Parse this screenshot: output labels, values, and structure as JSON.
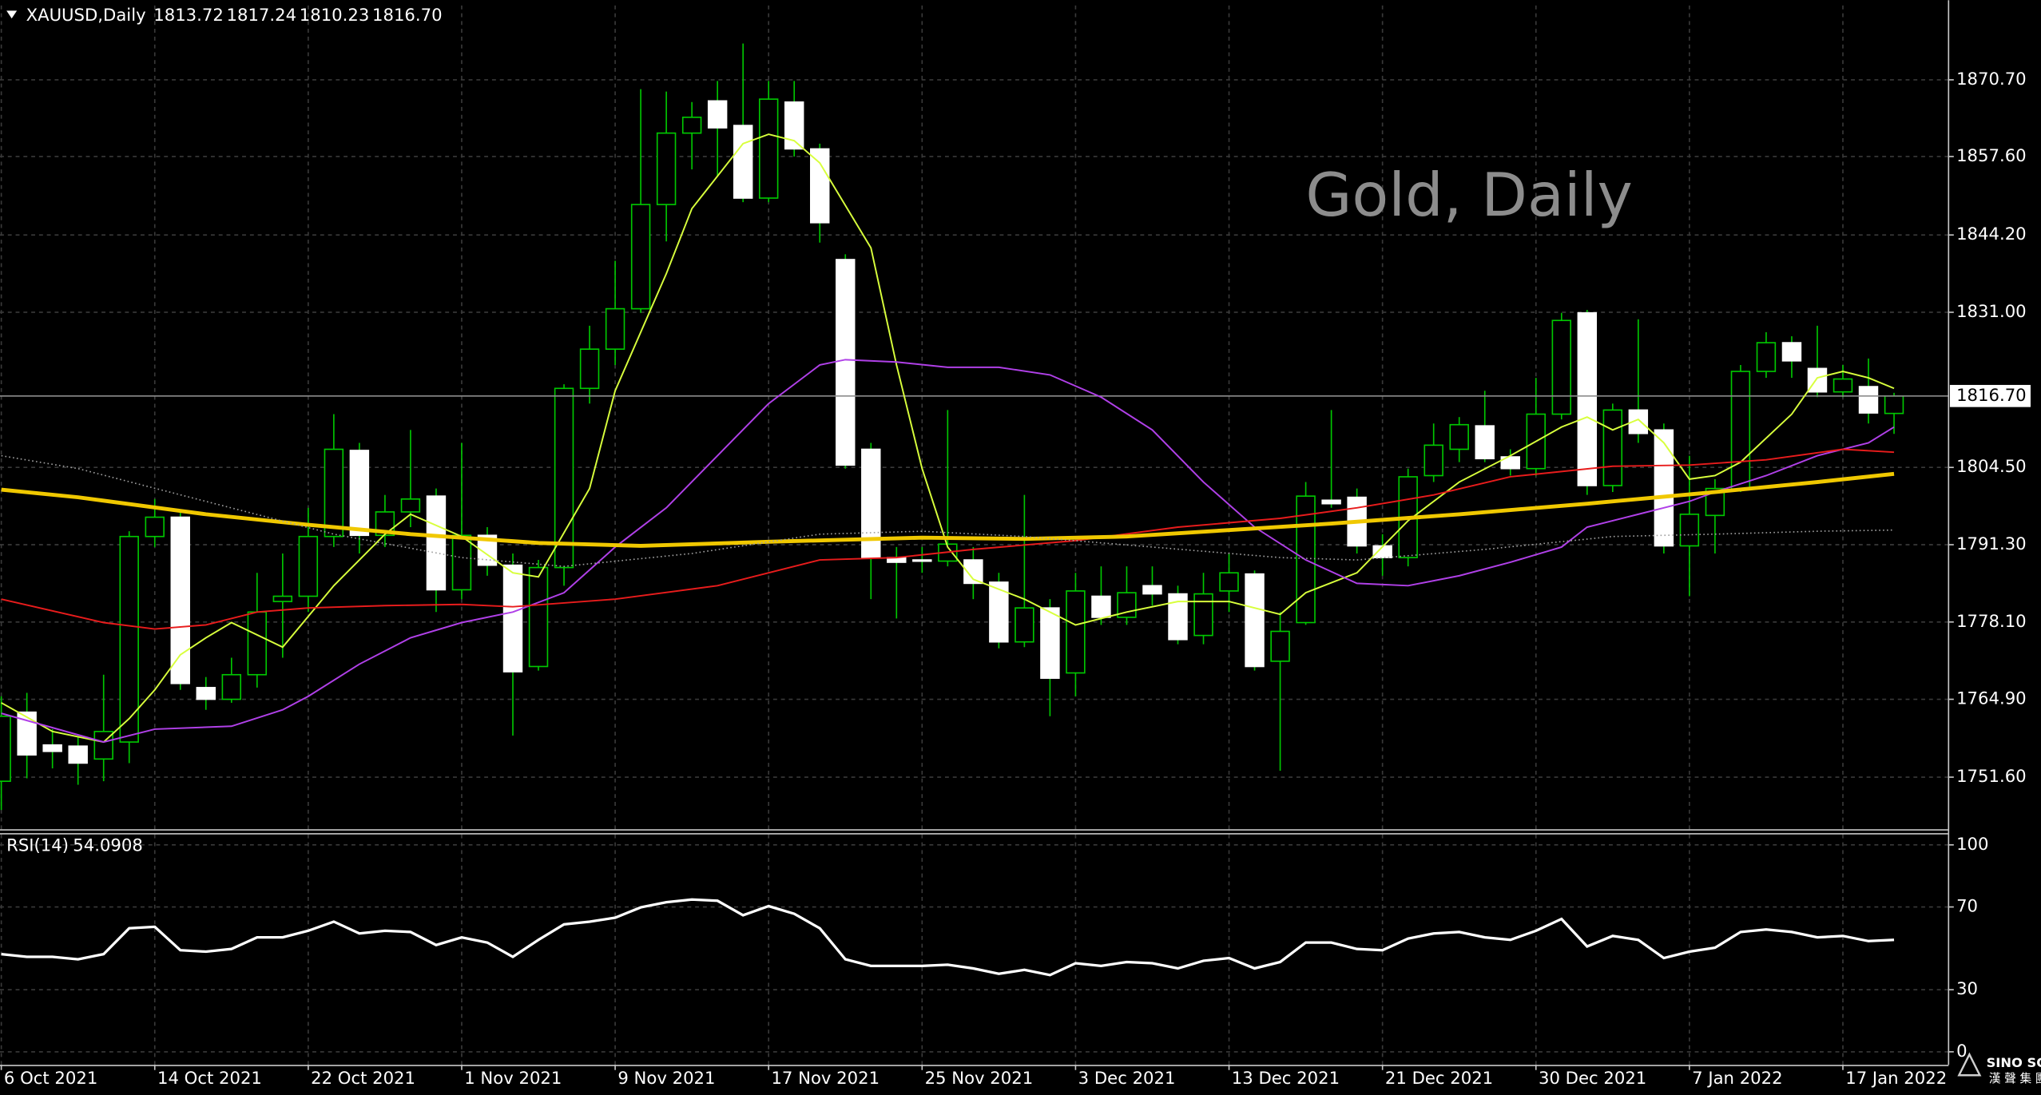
{
  "chart_data": [
    {
      "type": "candlestick",
      "title": "Gold, Daily",
      "symbol": "XAUUSD,Daily",
      "categories": [
        "6 Oct 2021",
        null,
        null,
        null,
        null,
        null,
        "14 Oct 2021",
        null,
        null,
        null,
        null,
        null,
        "22 Oct 2021",
        null,
        null,
        null,
        null,
        null,
        "1 Nov 2021",
        null,
        null,
        null,
        null,
        null,
        "9 Nov 2021",
        null,
        null,
        null,
        null,
        null,
        "17 Nov 2021",
        null,
        null,
        null,
        null,
        null,
        "25 Nov 2021",
        null,
        null,
        null,
        null,
        null,
        "3 Dec 2021",
        null,
        null,
        null,
        null,
        null,
        "13 Dec 2021",
        null,
        null,
        null,
        null,
        null,
        "21 Dec 2021",
        null,
        null,
        null,
        null,
        null,
        "30 Dec 2021",
        null,
        null,
        null,
        null,
        null,
        "7 Jan 2022",
        null,
        null,
        null,
        null,
        null,
        "17 Jan 2022",
        null,
        null
      ],
      "open": [
        1750.9,
        1762.7,
        1757.1,
        1756.9,
        1754.7,
        1757.6,
        1792.7,
        1796.0,
        1766.9,
        1764.9,
        1769.1,
        1781.6,
        1782.5,
        1792.7,
        1807.4,
        1792.9,
        1796.9,
        1799.6,
        1783.6,
        1792.9,
        1787.8,
        1770.5,
        1787.4,
        1818.0,
        1824.7,
        1831.6,
        1849.4,
        1861.6,
        1867.1,
        1862.9,
        1850.5,
        1866.9,
        1858.9,
        1840.0,
        1807.6,
        1789.1,
        1788.7,
        1788.5,
        1788.7,
        1784.9,
        1774.7,
        1780.5,
        1769.4,
        1782.5,
        1778.9,
        1784.3,
        1782.9,
        1775.8,
        1783.4,
        1786.3,
        1771.4,
        1778.0,
        1798.9,
        1799.4,
        1791.1,
        1789.1,
        1803.1,
        1807.6,
        1811.6,
        1806.3,
        1804.3,
        1813.6,
        1830.9,
        1801.4,
        1814.3,
        1810.9,
        1791.1,
        1796.3,
        1800.7,
        1820.9,
        1825.8,
        1821.4,
        1817.4,
        1818.3,
        1813.72
      ],
      "high": [
        1765.4,
        1766.0,
        1759.8,
        1758.5,
        1769.1,
        1793.6,
        1799.1,
        1797.1,
        1768.7,
        1772.0,
        1786.5,
        1789.8,
        1797.6,
        1813.6,
        1808.7,
        1799.8,
        1810.9,
        1800.9,
        1808.7,
        1794.3,
        1789.8,
        1788.7,
        1818.7,
        1828.7,
        1839.8,
        1869.1,
        1868.7,
        1866.9,
        1870.5,
        1876.9,
        1870.5,
        1870.5,
        1859.8,
        1840.9,
        1808.7,
        1790.9,
        1790.9,
        1814.3,
        1790.9,
        1786.5,
        1799.8,
        1782.0,
        1786.5,
        1787.6,
        1787.6,
        1787.6,
        1784.3,
        1786.5,
        1789.8,
        1786.9,
        1779.8,
        1802.0,
        1814.3,
        1800.9,
        1793.1,
        1804.3,
        1812.0,
        1813.1,
        1817.6,
        1807.6,
        1819.8,
        1830.9,
        1831.4,
        1815.4,
        1829.8,
        1812.0,
        1806.5,
        1802.5,
        1822.0,
        1827.6,
        1826.9,
        1828.7,
        1822.0,
        1823.1,
        1817.24
      ],
      "low": [
        1746.0,
        1751.4,
        1753.1,
        1750.3,
        1750.9,
        1754.0,
        1790.9,
        1766.5,
        1763.1,
        1764.3,
        1766.9,
        1772.0,
        1779.8,
        1790.9,
        1789.8,
        1790.9,
        1794.3,
        1779.8,
        1782.0,
        1786.0,
        1758.7,
        1769.8,
        1784.3,
        1815.4,
        1822.0,
        1830.9,
        1843.1,
        1855.4,
        1854.3,
        1849.8,
        1849.8,
        1857.6,
        1842.9,
        1804.3,
        1782.0,
        1778.7,
        1786.5,
        1787.6,
        1782.0,
        1773.6,
        1773.8,
        1762.0,
        1765.4,
        1777.6,
        1777.6,
        1780.9,
        1774.3,
        1774.3,
        1779.8,
        1769.8,
        1752.7,
        1777.6,
        1797.6,
        1789.8,
        1786.0,
        1787.6,
        1802.0,
        1805.4,
        1805.4,
        1803.1,
        1803.1,
        1812.7,
        1799.8,
        1800.3,
        1808.7,
        1789.8,
        1782.5,
        1789.8,
        1800.3,
        1819.8,
        1819.8,
        1816.5,
        1816.5,
        1812.0,
        1810.23
      ],
      "close": [
        1762.0,
        1755.4,
        1756.0,
        1754.0,
        1759.4,
        1792.7,
        1796.0,
        1767.6,
        1764.9,
        1769.1,
        1779.8,
        1782.5,
        1792.7,
        1807.6,
        1792.9,
        1796.9,
        1799.1,
        1783.6,
        1792.9,
        1787.8,
        1769.6,
        1787.4,
        1818.0,
        1824.7,
        1831.6,
        1849.4,
        1861.6,
        1864.3,
        1862.5,
        1850.5,
        1867.4,
        1858.9,
        1846.3,
        1804.9,
        1789.1,
        1788.3,
        1788.5,
        1791.4,
        1784.7,
        1774.7,
        1780.5,
        1768.5,
        1783.4,
        1778.9,
        1783.1,
        1782.9,
        1775.1,
        1782.9,
        1786.5,
        1770.5,
        1776.5,
        1799.6,
        1798.3,
        1791.1,
        1789.1,
        1802.9,
        1808.3,
        1811.8,
        1806.0,
        1804.3,
        1813.6,
        1829.6,
        1801.4,
        1814.3,
        1810.3,
        1791.1,
        1796.5,
        1800.9,
        1820.9,
        1825.8,
        1822.7,
        1817.4,
        1819.6,
        1813.8,
        1816.7
      ],
      "up_color": "#00c800",
      "down_color": "#ffffff",
      "overlays": [
        {
          "color": "#d8ff3c",
          "style": "solid",
          "x": [
            0,
            2,
            4,
            5,
            6,
            7,
            8,
            9,
            11,
            13,
            15,
            16,
            18,
            20,
            21,
            23,
            24,
            26,
            27,
            29,
            30,
            31,
            32,
            34,
            35,
            36,
            37,
            38,
            40,
            42,
            44,
            46,
            48,
            50,
            51,
            53,
            55,
            57,
            59,
            61,
            62,
            63,
            64,
            65,
            66,
            67,
            68,
            70,
            71,
            72,
            73,
            74
          ],
          "values": [
            1764.3,
            1759.4,
            1757.6,
            1761.6,
            1766.5,
            1772.5,
            1775.4,
            1778.0,
            1773.8,
            1784.3,
            1793.1,
            1796.5,
            1792.7,
            1786.5,
            1785.8,
            1800.9,
            1817.6,
            1837.6,
            1848.7,
            1859.8,
            1861.4,
            1860.3,
            1856.5,
            1842.0,
            1822.0,
            1804.3,
            1790.9,
            1785.4,
            1782.0,
            1777.6,
            1779.8,
            1781.6,
            1781.6,
            1779.4,
            1783.1,
            1786.5,
            1795.4,
            1802.0,
            1806.5,
            1811.4,
            1813.1,
            1810.9,
            1812.7,
            1808.7,
            1802.5,
            1803.1,
            1805.4,
            1813.6,
            1819.8,
            1820.9,
            1819.8,
            1818.0
          ]
        },
        {
          "color": "#b040e8",
          "style": "solid",
          "x": [
            0,
            4,
            6,
            9,
            11,
            12,
            14,
            16,
            18,
            20,
            22,
            24,
            26,
            28,
            30,
            32,
            33,
            35,
            37,
            39,
            41,
            43,
            45,
            47,
            49,
            51,
            53,
            55,
            57,
            59,
            61,
            62,
            64,
            66,
            67,
            69,
            71,
            73,
            74
          ],
          "values": [
            1762.5,
            1757.6,
            1759.8,
            1760.3,
            1763.1,
            1765.4,
            1770.9,
            1775.4,
            1778.0,
            1779.8,
            1783.1,
            1790.9,
            1797.6,
            1806.5,
            1815.4,
            1822.0,
            1822.9,
            1822.5,
            1821.6,
            1821.6,
            1820.3,
            1816.5,
            1810.9,
            1802.0,
            1794.3,
            1788.7,
            1784.7,
            1784.3,
            1786.0,
            1788.3,
            1790.9,
            1794.3,
            1796.5,
            1798.7,
            1800.3,
            1803.1,
            1806.5,
            1808.7,
            1811.4
          ]
        },
        {
          "color": "#e81c1c",
          "style": "solid",
          "x": [
            0,
            4,
            6,
            8,
            10,
            12,
            15,
            18,
            20,
            24,
            28,
            30,
            32,
            35,
            38,
            42,
            46,
            50,
            53,
            56,
            59,
            63,
            66,
            69,
            72,
            74
          ],
          "values": [
            1782.0,
            1778.0,
            1776.9,
            1777.6,
            1779.8,
            1780.5,
            1780.9,
            1781.1,
            1780.7,
            1782.0,
            1784.3,
            1786.5,
            1788.7,
            1789.1,
            1790.5,
            1792.0,
            1794.3,
            1795.8,
            1797.6,
            1799.8,
            1802.9,
            1804.7,
            1804.9,
            1805.8,
            1807.6,
            1807.1
          ]
        },
        {
          "color": "#f0c800",
          "style": "thick",
          "x": [
            0,
            3,
            8,
            12,
            16,
            21,
            25,
            30,
            36,
            40,
            44,
            48,
            52,
            57,
            62,
            67,
            71,
            74
          ],
          "values": [
            1800.7,
            1799.4,
            1796.5,
            1794.7,
            1793.1,
            1791.6,
            1791.1,
            1791.8,
            1792.5,
            1792.3,
            1792.7,
            1793.8,
            1794.9,
            1796.5,
            1798.3,
            1800.3,
            1802.0,
            1803.4
          ]
        },
        {
          "color": "#a0a0a0",
          "style": "dotted",
          "x": [
            0,
            3,
            8,
            13,
            18,
            22,
            27,
            32,
            36,
            40,
            45,
            50,
            53,
            58,
            63,
            67,
            71,
            74
          ],
          "values": [
            1806.5,
            1804.3,
            1798.7,
            1793.1,
            1789.1,
            1787.6,
            1789.8,
            1793.1,
            1793.6,
            1792.7,
            1790.9,
            1789.1,
            1788.7,
            1790.5,
            1792.7,
            1793.1,
            1793.6,
            1793.8
          ]
        }
      ],
      "ylim": [
        1742.7,
        1883.4
      ],
      "yticks": [
        {
          "value": 1751.6,
          "label": "1751.60"
        },
        {
          "value": 1764.9,
          "label": "1764.90"
        },
        {
          "value": 1778.1,
          "label": "1778.10"
        },
        {
          "value": 1791.3,
          "label": "1791.30"
        },
        {
          "value": 1804.5,
          "label": "1804.50"
        },
        {
          "value": 1831.0,
          "label": "1831.00"
        },
        {
          "value": 1844.2,
          "label": "1844.20"
        },
        {
          "value": 1857.6,
          "label": "1857.60"
        },
        {
          "value": 1870.7,
          "label": "1870.70"
        }
      ],
      "last_price": {
        "value": 1816.7,
        "label": "1816.70"
      },
      "grid": true
    },
    {
      "type": "line",
      "title": "RSI(14)",
      "values": [
        47.2,
        45.9,
        45.9,
        44.7,
        47.2,
        59.7,
        60.4,
        49.1,
        48.4,
        49.7,
        55.3,
        55.3,
        58.5,
        62.9,
        57.2,
        58.5,
        57.9,
        51.6,
        55.3,
        52.8,
        45.9,
        54.1,
        61.6,
        62.9,
        64.8,
        69.8,
        72.3,
        73.6,
        73.0,
        66.0,
        70.4,
        66.7,
        59.7,
        44.7,
        41.5,
        41.5,
        41.5,
        42.1,
        40.3,
        37.7,
        39.6,
        37.1,
        42.8,
        41.5,
        43.4,
        42.8,
        40.3,
        44.0,
        45.3,
        40.3,
        43.4,
        52.8,
        52.8,
        49.7,
        49.1,
        54.7,
        57.2,
        57.9,
        55.3,
        54.1,
        58.5,
        64.2,
        50.9,
        56.0,
        54.1,
        45.3,
        48.4,
        50.3,
        57.9,
        59.1,
        57.9,
        55.3,
        56.0,
        53.5,
        54.0908
      ],
      "color": "#ffffff",
      "ylim": [
        0,
        100
      ],
      "yticks": [
        0,
        30,
        70,
        100
      ],
      "grid": true
    }
  ],
  "logo": {
    "name": "SINO SOUND",
    "subtitle": "漢 聲 集 團"
  }
}
